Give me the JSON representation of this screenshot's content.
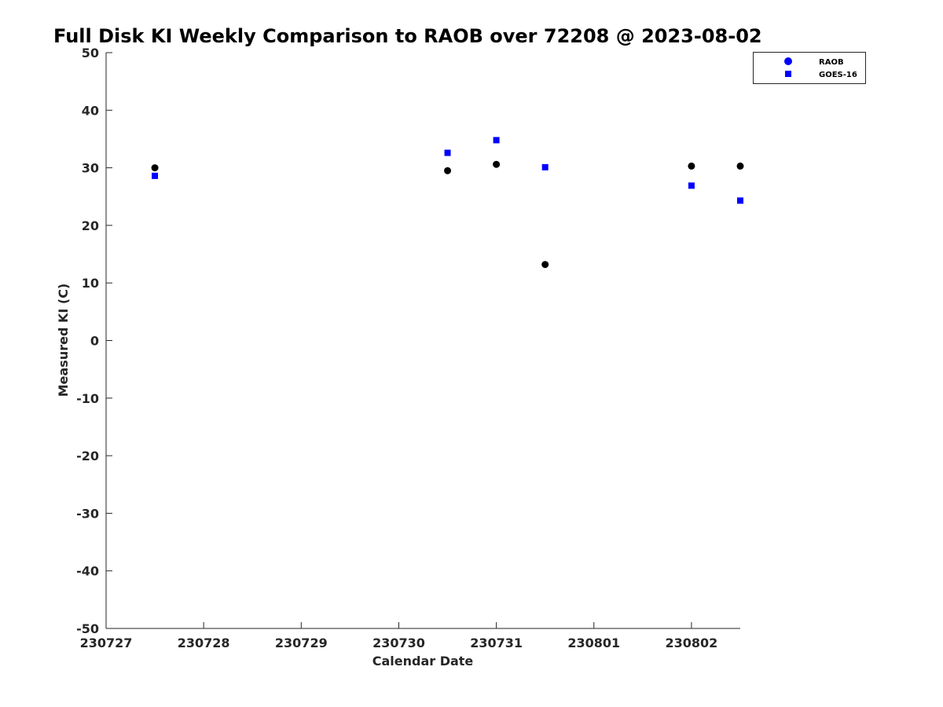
{
  "chart_data": {
    "type": "scatter",
    "title": "Full Disk KI Weekly Comparison to RAOB over 72208 @ 2023-08-02",
    "xlabel": "Calendar Date",
    "ylabel": "Measured KI (C)",
    "xlim": [
      0,
      6.5
    ],
    "ylim": [
      -50,
      50
    ],
    "x_tick_values": [
      0,
      1,
      2,
      3,
      4,
      5,
      6
    ],
    "x_tick_labels": [
      "230727",
      "230728",
      "230729",
      "230730",
      "230731",
      "230801",
      "230802"
    ],
    "y_ticks": [
      50,
      40,
      30,
      20,
      10,
      0,
      -10,
      -20,
      -30,
      -40,
      -50
    ],
    "y_tick_labels": [
      "50",
      "40",
      "30",
      "20",
      "10",
      "0",
      "-10",
      "-20",
      "-30",
      "-40",
      "-50"
    ],
    "grid": false,
    "legend_position": "top-right",
    "series": [
      {
        "name": "RAOB",
        "marker": "circle",
        "color": "#000000",
        "legend_color": "#0000ff",
        "x": [
          0.5,
          3.5,
          4.0,
          4.5,
          6.0,
          6.5
        ],
        "y": [
          30.0,
          29.5,
          30.6,
          13.2,
          30.3,
          30.3
        ]
      },
      {
        "name": "GOES-16",
        "marker": "square",
        "color": "#0000ff",
        "legend_color": "#0000ff",
        "x": [
          0.5,
          3.5,
          4.0,
          4.5,
          6.0,
          6.5
        ],
        "y": [
          28.6,
          32.6,
          34.8,
          30.1,
          26.9,
          24.3
        ]
      }
    ]
  }
}
